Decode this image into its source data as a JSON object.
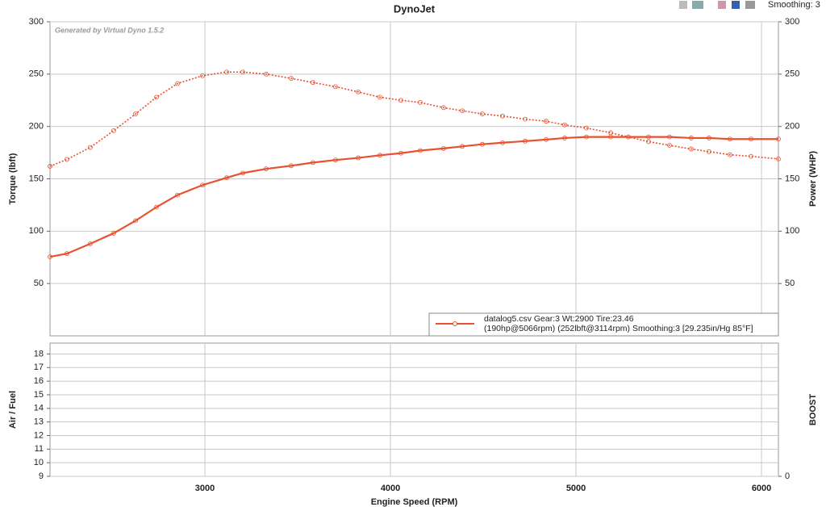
{
  "toolbar": {
    "smoothing": "Smoothing: 3"
  },
  "chart_data": [
    {
      "type": "line",
      "title": "DynoJet",
      "watermark": "Generated by Virtual Dyno 1.5.2",
      "ylabel": "Torque (lbft)",
      "y2label": "Power (WHP)",
      "xlim": [
        2165,
        6091
      ],
      "xticks": [
        3000,
        4000,
        5000,
        6000
      ],
      "ylim": [
        0,
        300
      ],
      "yticks": [
        50,
        100,
        150,
        200,
        250,
        300
      ],
      "y2lim": [
        0,
        300
      ],
      "y2ticks": [
        50,
        100,
        150,
        200,
        250,
        300
      ],
      "grid": true,
      "legend_text": [
        "datalog5.csv Gear:3 Wt:2900 Tire:23.46",
        "(190hp@5066rpm)  (252lbft@3114rpm)  Smoothing:3  [29.235in/Hg  85°F]"
      ],
      "x": [
        2165,
        2256,
        2382,
        2508,
        2626,
        2739,
        2852,
        2987,
        3117,
        3204,
        3330,
        3465,
        3582,
        3704,
        3826,
        3943,
        4056,
        4160,
        4286,
        4387,
        4495,
        4604,
        4726,
        4839,
        4939,
        5056,
        5187,
        5282,
        5391,
        5504,
        5621,
        5717,
        5830,
        5943,
        6091
      ],
      "series": [
        {
          "axis": "y",
          "style": "dotted",
          "color": "#e8502f",
          "values": [
            162,
            168.5,
            180,
            196,
            212,
            228,
            241,
            248.5,
            252,
            252,
            250,
            246,
            242,
            238,
            233,
            228,
            225,
            223,
            218,
            215,
            212,
            210,
            207,
            205,
            201.5,
            198.5,
            194,
            190,
            185.5,
            182,
            178.5,
            176,
            173,
            171.5,
            169
          ]
        },
        {
          "axis": "y2",
          "style": "solid",
          "color": "#e8502f",
          "values": [
            75.5,
            78.5,
            88,
            98,
            110,
            123,
            134.5,
            144,
            151,
            155.5,
            159.5,
            162.5,
            165.5,
            168,
            170,
            172.5,
            174.5,
            177,
            179,
            181,
            183,
            184.5,
            186,
            187.5,
            189,
            190,
            190,
            190,
            190,
            190,
            189,
            189,
            188,
            188,
            188
          ]
        }
      ]
    },
    {
      "type": "line",
      "xlabel": "Engine Speed (RPM)",
      "ylabel": "Air / Fuel",
      "y2label": "BOOST",
      "xlim": [
        2165,
        6091
      ],
      "xticks": [
        3000,
        4000,
        5000,
        6000
      ],
      "ylim": [
        9,
        18.8
      ],
      "yticks": [
        9,
        10,
        11,
        12,
        13,
        14,
        15,
        16,
        17,
        18
      ],
      "y2lim": [
        0,
        10
      ],
      "y2ticks": [
        0
      ],
      "grid": true
    }
  ]
}
